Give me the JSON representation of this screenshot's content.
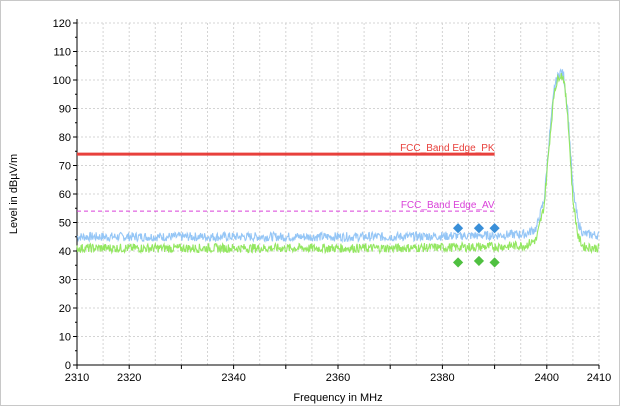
{
  "chart_data": {
    "type": "line",
    "xlabel": "Frequency in MHz",
    "ylabel": "Level in dBµV/m",
    "xlim": [
      2310,
      2410
    ],
    "ylim": [
      0,
      120
    ],
    "x_ticks": [
      2310,
      2320,
      2340,
      2360,
      2380,
      2400,
      2410
    ],
    "y_ticks": [
      0,
      10,
      20,
      30,
      40,
      50,
      60,
      70,
      80,
      90,
      100,
      110,
      120
    ],
    "grid": true,
    "limit_lines": [
      {
        "label": "FCC_Band Edge_PK",
        "y": 74,
        "x_range": [
          2310,
          2390
        ],
        "color": "#e8403c",
        "style": "solid"
      },
      {
        "label": "FCC_Band Edge_AV",
        "y": 54,
        "x_range": [
          2310,
          2390
        ],
        "color": "#d940d9",
        "style": "dashed"
      }
    ],
    "series": [
      {
        "color": "#8fc3f5",
        "style": "noisy-trace",
        "x": [
          2310,
          2330,
          2350,
          2370,
          2390,
          2396,
          2398,
          2399.5,
          2400.5,
          2401.5,
          2402.5,
          2403.2,
          2404,
          2405,
          2406,
          2407,
          2410
        ],
        "y": [
          45,
          45,
          45,
          45,
          45.5,
          46,
          48,
          58,
          80,
          98,
          103,
          102,
          90,
          62,
          50,
          46,
          45.5
        ]
      },
      {
        "color": "#8ee65a",
        "style": "noisy-trace",
        "x": [
          2310,
          2330,
          2350,
          2370,
          2390,
          2396,
          2398,
          2399.5,
          2400.5,
          2401.5,
          2402.5,
          2403.2,
          2404,
          2405,
          2406,
          2407,
          2410
        ],
        "y": [
          41,
          41,
          41,
          41,
          41.5,
          42,
          44,
          56,
          78,
          97,
          102,
          101,
          88,
          58,
          45,
          41.5,
          41
        ]
      }
    ],
    "markers": [
      {
        "x": 2383,
        "y": 48,
        "color": "#3a8fd8"
      },
      {
        "x": 2387,
        "y": 48,
        "color": "#3a8fd8"
      },
      {
        "x": 2390,
        "y": 48,
        "color": "#3a8fd8"
      },
      {
        "x": 2383,
        "y": 36,
        "color": "#4fc040"
      },
      {
        "x": 2387,
        "y": 36.5,
        "color": "#4fc040"
      },
      {
        "x": 2390,
        "y": 36,
        "color": "#4fc040"
      }
    ]
  }
}
